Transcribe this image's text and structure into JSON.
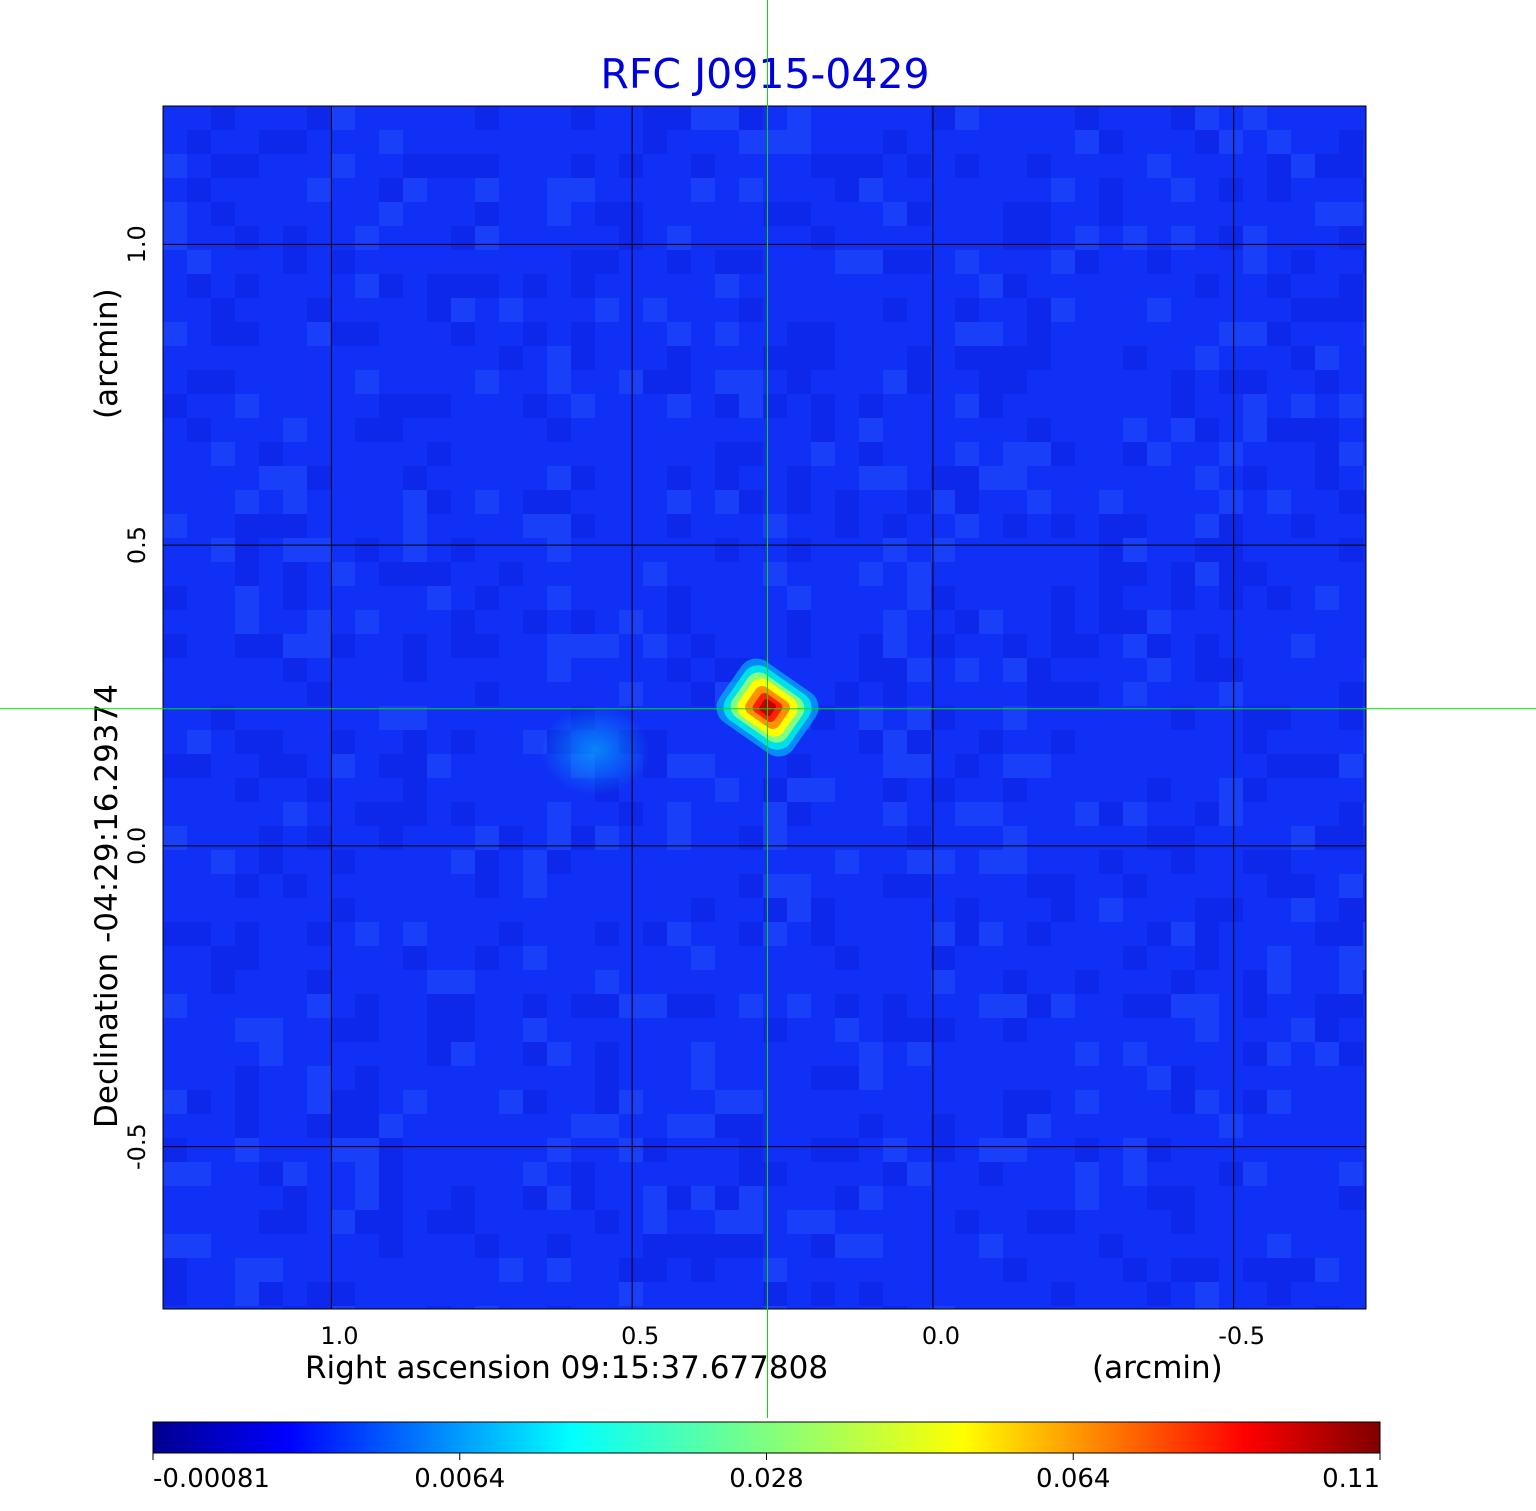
{
  "chart_data": {
    "type": "heatmap",
    "title": "RFC J0915-0429",
    "xlabel": "Right ascension  09:15:37.677808",
    "xunit": "(arcmin)",
    "ylabel": "Declination  -04:29:16.29374",
    "yunit": "(arcmin)",
    "xlim": [
      1.28,
      -0.72
    ],
    "ylim": [
      -0.77,
      1.23
    ],
    "x_ticks": [
      {
        "value": 1.0,
        "label": "1.0"
      },
      {
        "value": 0.5,
        "label": "0.5"
      },
      {
        "value": 0.0,
        "label": "0.0"
      },
      {
        "value": -0.5,
        "label": "-0.5"
      }
    ],
    "y_ticks": [
      {
        "value": 1.0,
        "label": "1.0"
      },
      {
        "value": 0.5,
        "label": "0.5"
      },
      {
        "value": 0.0,
        "label": "0.0"
      },
      {
        "value": -0.5,
        "label": "-0.5"
      }
    ],
    "grid": true,
    "colormap": "jet",
    "colorbar": {
      "min": -0.00081,
      "max": 0.11,
      "tick_labels": [
        "-0.00081",
        "0.0064",
        "0.028",
        "0.064",
        "0.11"
      ]
    },
    "peak": {
      "x": 0.275,
      "y": 0.23,
      "value": 0.11
    },
    "crosshair": {
      "x": 0.275,
      "y": 0.228,
      "color": "#00e000"
    },
    "colors": {
      "background_field": "#1030f5",
      "title": "#0000dd"
    }
  }
}
